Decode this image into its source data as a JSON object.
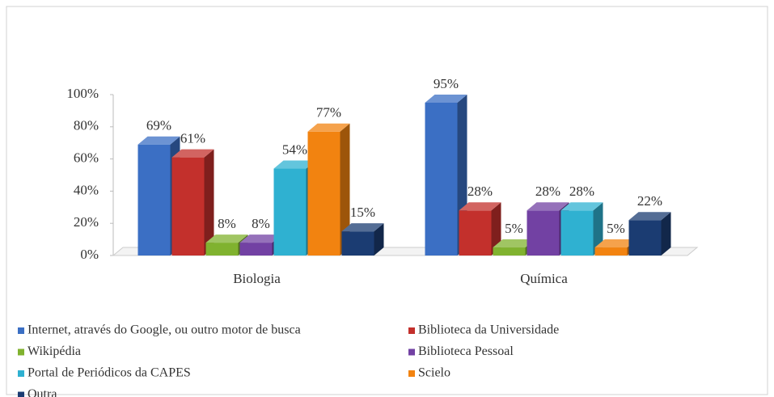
{
  "chart_data": {
    "type": "bar3d",
    "categories": [
      "Biologia",
      "Química"
    ],
    "series": [
      {
        "name": "Internet, através do Google, ou outro motor de busca",
        "color": "#3b6fc4",
        "values": [
          69,
          95
        ],
        "value_labels": [
          "69%",
          "95%"
        ]
      },
      {
        "name": "Biblioteca da Universidade",
        "color": "#c3302c",
        "values": [
          61,
          28
        ],
        "value_labels": [
          "61%",
          "28%"
        ]
      },
      {
        "name": "Wikipédia",
        "color": "#80b22f",
        "values": [
          8,
          5
        ],
        "value_labels": [
          "8%",
          "5%"
        ]
      },
      {
        "name": "Biblioteca Pessoal",
        "color": "#7241a3",
        "values": [
          8,
          28
        ],
        "value_labels": [
          "8%",
          "28%"
        ]
      },
      {
        "name": "Portal de Periódicos da CAPES",
        "color": "#2fb1d1",
        "values": [
          54,
          28
        ],
        "value_labels": [
          "54%",
          "28%"
        ]
      },
      {
        "name": "Scielo",
        "color": "#f28310",
        "values": [
          77,
          5
        ],
        "value_labels": [
          "77%",
          "5%"
        ]
      },
      {
        "name": "Outra",
        "color": "#1b3c72",
        "values": [
          15,
          22
        ],
        "value_labels": [
          "15%",
          "22%"
        ]
      }
    ],
    "ylim": [
      0,
      100
    ],
    "yticks": [
      {
        "value": 0,
        "label": "0%"
      },
      {
        "value": 20,
        "label": "20%"
      },
      {
        "value": 40,
        "label": "40%"
      },
      {
        "value": 60,
        "label": "60%"
      },
      {
        "value": 80,
        "label": "80%"
      },
      {
        "value": 100,
        "label": "100%"
      }
    ],
    "legend": "bottom"
  }
}
